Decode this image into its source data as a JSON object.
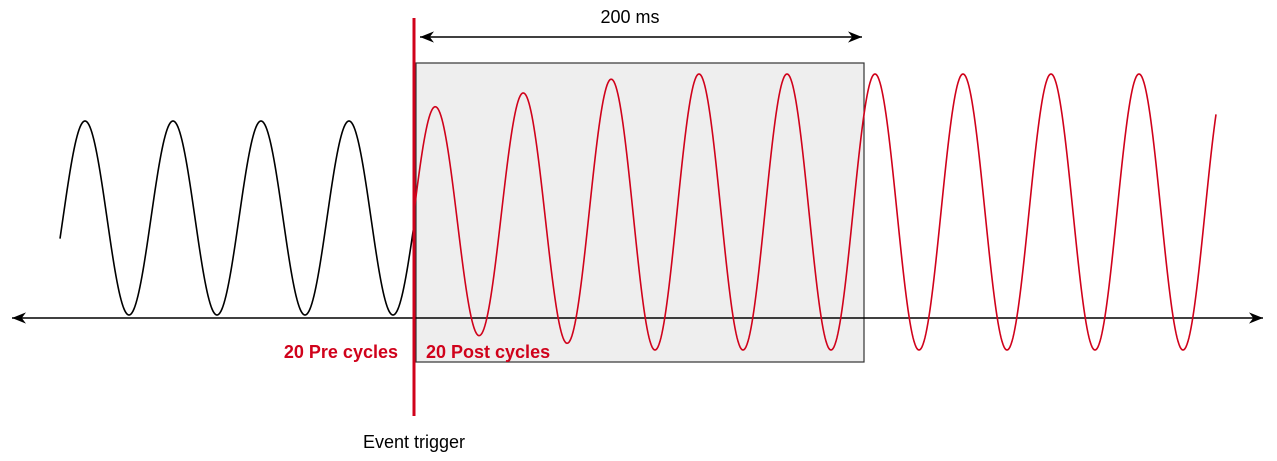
{
  "window": {
    "label": "200 ms"
  },
  "pre": {
    "label": "20 Pre cycles"
  },
  "post": {
    "label": "20 Post cycles"
  },
  "trigger": {
    "label": "Event trigger"
  }
}
